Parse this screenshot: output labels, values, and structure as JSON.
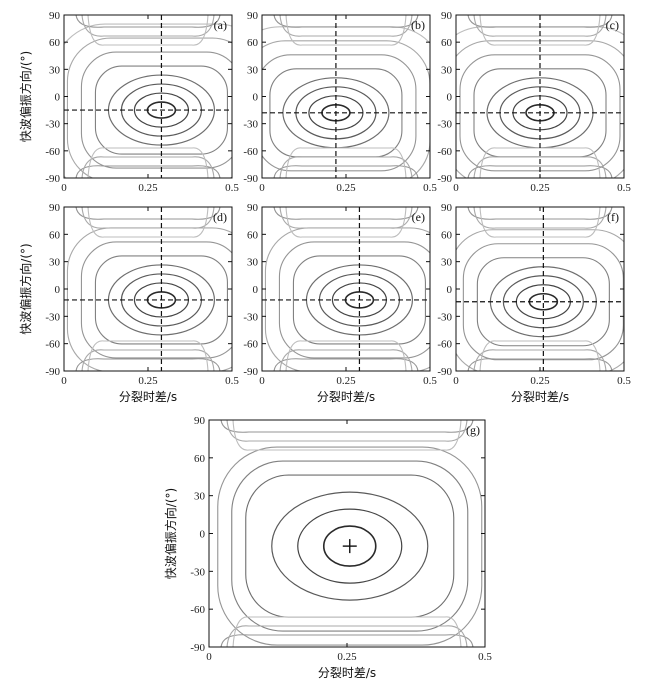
{
  "chart_data": [
    {
      "id": "a",
      "type": "contour",
      "panel_label": "(a)",
      "xlabel": "",
      "ylabel": "快波偏振方向/(°)",
      "xlim": [
        0,
        0.5
      ],
      "ylim": [
        -90,
        90
      ],
      "x_ticks": [
        "0",
        "0.25",
        "0.5"
      ],
      "y_ticks": [
        "-90",
        "-60",
        "-30",
        "0",
        "30",
        "60",
        "90"
      ],
      "best_fit": {
        "dt": 0.29,
        "phi": -15
      },
      "marker": "dashed-crosshair",
      "contour_levels": 8
    },
    {
      "id": "b",
      "type": "contour",
      "panel_label": "(b)",
      "xlabel": "",
      "ylabel": "",
      "xlim": [
        0,
        0.5
      ],
      "ylim": [
        -90,
        90
      ],
      "x_ticks": [
        "0",
        "0.25",
        "0.5"
      ],
      "y_ticks": [
        "-90",
        "-60",
        "-30",
        "0",
        "30",
        "60",
        "90"
      ],
      "best_fit": {
        "dt": 0.22,
        "phi": -18
      },
      "marker": "dashed-crosshair",
      "contour_levels": 8
    },
    {
      "id": "c",
      "type": "contour",
      "panel_label": "(c)",
      "xlabel": "",
      "ylabel": "",
      "xlim": [
        0,
        0.5
      ],
      "ylim": [
        -90,
        90
      ],
      "x_ticks": [
        "0",
        "0.25",
        "0.5"
      ],
      "y_ticks": [
        "-90",
        "-60",
        "-30",
        "0",
        "30",
        "60",
        "90"
      ],
      "best_fit": {
        "dt": 0.25,
        "phi": -18
      },
      "marker": "dashed-crosshair",
      "contour_levels": 8
    },
    {
      "id": "d",
      "type": "contour",
      "panel_label": "(d)",
      "xlabel": "分裂时差/s",
      "ylabel": "快波偏振方向/(°)",
      "xlim": [
        0,
        0.5
      ],
      "ylim": [
        -90,
        90
      ],
      "x_ticks": [
        "0",
        "0.25",
        "0.5"
      ],
      "y_ticks": [
        "-90",
        "-60",
        "-30",
        "0",
        "30",
        "60",
        "90"
      ],
      "best_fit": {
        "dt": 0.29,
        "phi": -12
      },
      "marker": "dashed-crosshair",
      "contour_levels": 7
    },
    {
      "id": "e",
      "type": "contour",
      "panel_label": "(e)",
      "xlabel": "分裂时差/s",
      "ylabel": "",
      "xlim": [
        0,
        0.5
      ],
      "ylim": [
        -90,
        90
      ],
      "x_ticks": [
        "0",
        "0.25",
        "0.5"
      ],
      "y_ticks": [
        "-90",
        "-60",
        "-30",
        "0",
        "30",
        "60",
        "90"
      ],
      "best_fit": {
        "dt": 0.29,
        "phi": -12
      },
      "marker": "dashed-crosshair",
      "contour_levels": 7
    },
    {
      "id": "f",
      "type": "contour",
      "panel_label": "(f)",
      "xlabel": "分裂时差/s",
      "ylabel": "",
      "xlim": [
        0,
        0.5
      ],
      "ylim": [
        -90,
        90
      ],
      "x_ticks": [
        "0",
        "0.25",
        "0.5"
      ],
      "y_ticks": [
        "-90",
        "-60",
        "-30",
        "0",
        "30",
        "60",
        "90"
      ],
      "best_fit": {
        "dt": 0.26,
        "phi": -14
      },
      "marker": "dashed-crosshair",
      "contour_levels": 7
    },
    {
      "id": "g",
      "type": "contour",
      "panel_label": "(g)",
      "xlabel": "分裂时差/s",
      "ylabel": "快波偏振方向/(°)",
      "xlim": [
        0,
        0.5
      ],
      "ylim": [
        -90,
        90
      ],
      "x_ticks": [
        "0",
        "0.25",
        "0.5"
      ],
      "y_ticks": [
        "-90",
        "-60",
        "-30",
        "0",
        "30",
        "60",
        "90"
      ],
      "best_fit": {
        "dt": 0.255,
        "phi": -10
      },
      "marker": "plus",
      "contour_levels": 6
    }
  ]
}
